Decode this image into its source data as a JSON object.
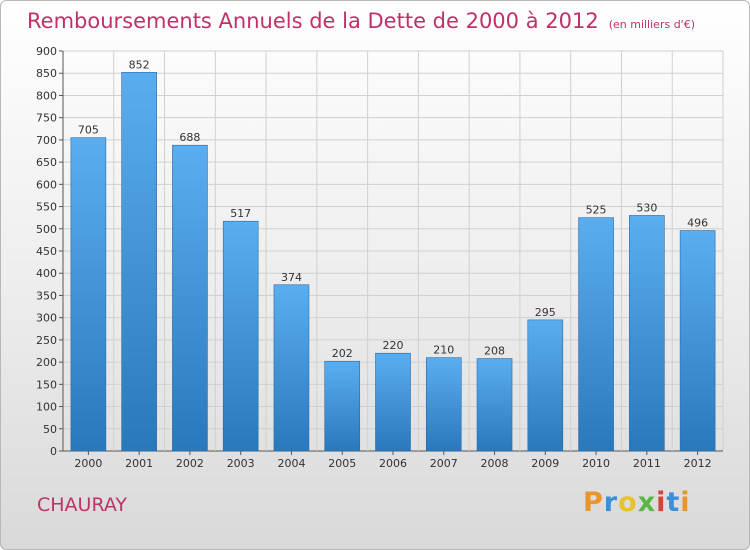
{
  "header": {
    "title": "Remboursements Annuels de la Dette de 2000 à 2012",
    "unit_note": "(en milliers d'€)"
  },
  "footer": {
    "place": "CHAURAY",
    "logo_text": "Proxiti",
    "logo_colors": [
      "#e8962a",
      "#3a8fd6",
      "#e8c22a",
      "#5bb548",
      "#d6433a",
      "#3a8fd6",
      "#e8962a"
    ]
  },
  "chart_data": {
    "type": "bar",
    "categories": [
      "2000",
      "2001",
      "2002",
      "2003",
      "2004",
      "2005",
      "2006",
      "2007",
      "2008",
      "2009",
      "2010",
      "2011",
      "2012"
    ],
    "values": [
      705,
      852,
      688,
      517,
      374,
      202,
      220,
      210,
      208,
      295,
      525,
      530,
      496
    ],
    "ylim": [
      0,
      900
    ],
    "yticks": [
      0,
      50,
      100,
      150,
      200,
      250,
      300,
      350,
      400,
      450,
      500,
      550,
      600,
      650,
      700,
      750,
      800,
      850,
      900
    ],
    "grid": true,
    "bar_color_top": "#5aaef0",
    "bar_color_bottom": "#2a78bc",
    "grid_color": "#d0d0d0"
  }
}
